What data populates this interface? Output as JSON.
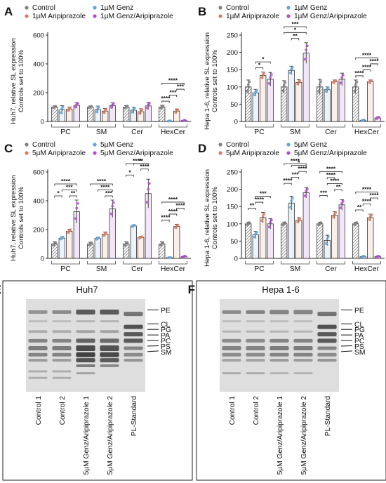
{
  "colors": {
    "control": "#7f7f7f",
    "genz": "#5ea6e0",
    "aripiprazole": "#e07a5f",
    "combo": "#b24bd1",
    "axis": "#222222",
    "gel_bg": "#dedede",
    "band": "#3a3a3a"
  },
  "chart_data": [
    {
      "panel": "A",
      "type": "bar",
      "ylabel": "Huh7, relative SL expression\nControls set to 100%",
      "ylim": [
        0,
        600
      ],
      "yticks": [
        0,
        200,
        400,
        600
      ],
      "categories": [
        "PC",
        "SM",
        "Cer",
        "HexCer"
      ],
      "series": [
        {
          "name": "Control",
          "values": [
            100,
            100,
            100,
            100
          ],
          "errors": [
            8,
            8,
            10,
            12
          ]
        },
        {
          "name": "1µM Genz",
          "values": [
            80,
            82,
            78,
            3
          ],
          "errors": [
            30,
            25,
            22,
            2
          ]
        },
        {
          "name": "1µM Aripiprazole",
          "values": [
            85,
            72,
            68,
            72
          ],
          "errors": [
            15,
            18,
            20,
            15
          ]
        },
        {
          "name": "1µM Genz/Aripiprazole",
          "values": [
            112,
            110,
            108,
            6
          ],
          "errors": [
            20,
            20,
            25,
            3
          ]
        }
      ],
      "sig": [
        {
          "cat": 3,
          "from": 0,
          "to": 1,
          "label": "****",
          "level": 0
        },
        {
          "cat": 3,
          "from": 1,
          "to": 2,
          "label": "***",
          "level": 1
        },
        {
          "cat": 3,
          "from": 2,
          "to": 3,
          "label": "***",
          "level": 2
        },
        {
          "cat": 3,
          "from": 0,
          "to": 3,
          "label": "****",
          "level": 3
        }
      ]
    },
    {
      "panel": "B",
      "type": "bar",
      "ylabel": "Hepa 1-6, relative SL expression\nControls set to 100%",
      "ylim": [
        0,
        250
      ],
      "yticks": [
        0,
        50,
        100,
        150,
        200,
        250
      ],
      "categories": [
        "PC",
        "SM",
        "Cer",
        "HexCer"
      ],
      "series": [
        {
          "name": "Control",
          "values": [
            100,
            100,
            100,
            100
          ],
          "errors": [
            20,
            18,
            22,
            20
          ]
        },
        {
          "name": "1µM Genz",
          "values": [
            83,
            148,
            92,
            3
          ],
          "errors": [
            10,
            12,
            8,
            2
          ]
        },
        {
          "name": "1µM Aripiprazole",
          "values": [
            133,
            113,
            115,
            115
          ],
          "errors": [
            10,
            8,
            5,
            5
          ]
        },
        {
          "name": "1µM Genz/Aripiprazole",
          "values": [
            122,
            198,
            122,
            10
          ],
          "errors": [
            20,
            30,
            18,
            3
          ]
        }
      ],
      "sig": [
        {
          "cat": 0,
          "from": 1,
          "to": 2,
          "label": "*",
          "level": 0
        },
        {
          "cat": 0,
          "from": 1,
          "to": 3,
          "label": "*",
          "level": 1
        },
        {
          "cat": 1,
          "from": 1,
          "to": 2,
          "label": "**",
          "level": 0
        },
        {
          "cat": 1,
          "from": 0,
          "to": 3,
          "label": "*",
          "level": 1
        },
        {
          "cat": 1,
          "from": 0,
          "to": 3,
          "label": "***",
          "level": 2
        },
        {
          "cat": 3,
          "from": 0,
          "to": 1,
          "label": "****",
          "level": 0
        },
        {
          "cat": 3,
          "from": 1,
          "to": 2,
          "label": "****",
          "level": 1
        },
        {
          "cat": 3,
          "from": 2,
          "to": 3,
          "label": "****",
          "level": 2
        },
        {
          "cat": 3,
          "from": 0,
          "to": 3,
          "label": "****",
          "level": 3
        }
      ]
    },
    {
      "panel": "C",
      "type": "bar",
      "ylabel": "Huh7, relative SL expression\nControls set to 100%",
      "ylim": [
        0,
        600
      ],
      "yticks": [
        0,
        200,
        400,
        600
      ],
      "categories": [
        "PC",
        "SM",
        "Cer",
        "HexCer"
      ],
      "series": [
        {
          "name": "Control",
          "values": [
            100,
            100,
            100,
            100
          ],
          "errors": [
            15,
            12,
            15,
            15
          ]
        },
        {
          "name": "5µM Genz",
          "values": [
            140,
            138,
            225,
            5
          ],
          "errors": [
            10,
            8,
            8,
            2
          ]
        },
        {
          "name": "5µM Aripiprazole",
          "values": [
            188,
            168,
            145,
            222
          ],
          "errors": [
            15,
            15,
            8,
            15
          ]
        },
        {
          "name": "5µM Genz/Aripiprazole",
          "values": [
            325,
            345,
            450,
            12
          ],
          "errors": [
            80,
            60,
            100,
            5
          ]
        }
      ],
      "sig": [
        {
          "cat": 0,
          "from": 0,
          "to": 1,
          "label": "*",
          "level": 0
        },
        {
          "cat": 0,
          "from": 2,
          "to": 3,
          "label": "**",
          "level": 0
        },
        {
          "cat": 0,
          "from": 1,
          "to": 3,
          "label": "***",
          "level": 1
        },
        {
          "cat": 0,
          "from": 0,
          "to": 3,
          "label": "****",
          "level": 2
        },
        {
          "cat": 1,
          "from": 2,
          "to": 3,
          "label": "***",
          "level": 0
        },
        {
          "cat": 1,
          "from": 1,
          "to": 3,
          "label": "****",
          "level": 1
        },
        {
          "cat": 1,
          "from": 0,
          "to": 3,
          "label": "****",
          "level": 2
        },
        {
          "cat": 2,
          "from": 0,
          "to": 1,
          "label": "*",
          "level": 0
        },
        {
          "cat": 2,
          "from": 2,
          "to": 3,
          "label": "****",
          "level": 1
        },
        {
          "cat": 2,
          "from": 1,
          "to": 3,
          "label": "**",
          "level": 2
        },
        {
          "cat": 2,
          "from": 0,
          "to": 3,
          "label": "****",
          "level": 3
        },
        {
          "cat": 3,
          "from": 0,
          "to": 1,
          "label": "****",
          "level": 0
        },
        {
          "cat": 3,
          "from": 1,
          "to": 2,
          "label": "****",
          "level": 1
        },
        {
          "cat": 3,
          "from": 2,
          "to": 3,
          "label": "****",
          "level": 2
        },
        {
          "cat": 3,
          "from": 0,
          "to": 3,
          "label": "****",
          "level": 3
        }
      ]
    },
    {
      "panel": "D",
      "type": "bar",
      "ylabel": "Hepa 1-6, relative SL expression\nControls set to 100%",
      "ylim": [
        0,
        250
      ],
      "yticks": [
        0,
        50,
        100,
        150,
        200,
        250
      ],
      "categories": [
        "PC",
        "SM",
        "Cer",
        "HexCer"
      ],
      "series": [
        {
          "name": "Control",
          "values": [
            100,
            100,
            100,
            100
          ],
          "errors": [
            5,
            5,
            5,
            5
          ]
        },
        {
          "name": "5µM Genz",
          "values": [
            68,
            160,
            52,
            5
          ],
          "errors": [
            10,
            20,
            15,
            2
          ]
        },
        {
          "name": "5µM Aripiprazole",
          "values": [
            118,
            110,
            125,
            118
          ],
          "errors": [
            15,
            8,
            10,
            10
          ]
        },
        {
          "name": "5µM Genz/Aripiprazole",
          "values": [
            100,
            190,
            155,
            5
          ],
          "errors": [
            15,
            15,
            15,
            2
          ]
        }
      ],
      "sig": [
        {
          "cat": 0,
          "from": 0,
          "to": 1,
          "label": "**",
          "level": 0
        },
        {
          "cat": 0,
          "from": 1,
          "to": 2,
          "label": "****",
          "level": 1
        },
        {
          "cat": 0,
          "from": 1,
          "to": 3,
          "label": "***",
          "level": 2
        },
        {
          "cat": 1,
          "from": 0,
          "to": 1,
          "label": "****",
          "level": 0
        },
        {
          "cat": 1,
          "from": 1,
          "to": 2,
          "label": "***",
          "level": 1
        },
        {
          "cat": 1,
          "from": 2,
          "to": 3,
          "label": "****",
          "level": 2
        },
        {
          "cat": 1,
          "from": 1,
          "to": 3,
          "label": "*",
          "level": 3
        },
        {
          "cat": 1,
          "from": 0,
          "to": 3,
          "label": "****",
          "level": 4
        },
        {
          "cat": 2,
          "from": 0,
          "to": 1,
          "label": "***",
          "level": 0
        },
        {
          "cat": 2,
          "from": 2,
          "to": 3,
          "label": "**",
          "level": 1
        },
        {
          "cat": 2,
          "from": 1,
          "to": 3,
          "label": "****",
          "level": 2
        },
        {
          "cat": 2,
          "from": 1,
          "to": 2,
          "label": "****",
          "level": 3
        },
        {
          "cat": 2,
          "from": 0,
          "to": 3,
          "label": "****",
          "level": 4
        },
        {
          "cat": 3,
          "from": 0,
          "to": 1,
          "label": "**",
          "level": 0
        },
        {
          "cat": 3,
          "from": 1,
          "to": 2,
          "label": "****",
          "level": 1
        },
        {
          "cat": 3,
          "from": 2,
          "to": 3,
          "label": "****",
          "level": 2
        },
        {
          "cat": 3,
          "from": 0,
          "to": 3,
          "label": "****",
          "level": 3
        }
      ]
    }
  ],
  "gels": [
    {
      "panel": "E",
      "title": "Huh7",
      "lanes": [
        "Control 1",
        "Control 2",
        "5µM Genz/Aripiprazole 1",
        "5µM Genz/Aripiprazole 2",
        "PL-Standard"
      ],
      "band_labels": [
        "PE",
        "CL",
        "PG",
        "PA",
        "PC",
        "PS",
        "SM"
      ]
    },
    {
      "panel": "F",
      "title": "Hepa 1-6",
      "lanes": [
        "Control 1",
        "Control 2",
        "5µM Genz/Aripiprazole 1",
        "5µM Genz/Aripiprazole 2",
        "PL-Standard"
      ],
      "band_labels": [
        "PE",
        "CL",
        "PG",
        "PA",
        "PC",
        "PS",
        "SM"
      ]
    }
  ]
}
